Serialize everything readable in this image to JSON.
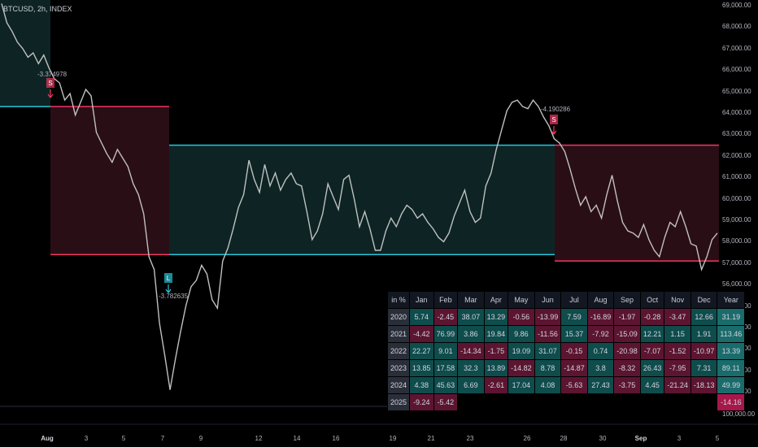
{
  "symbol": "BTCUSD, 2h, INDEX",
  "y_axis": {
    "ticks": [
      "69,000.00",
      "68,000.00",
      "67,000.00",
      "66,000.00",
      "65,000.00",
      "64,000.00",
      "63,000.00",
      "62,000.00",
      "61,000.00",
      "60,000.00",
      "59,000.00",
      "58,000.00",
      "57,000.00",
      "56,000.00",
      "55,000.00",
      "54,000.00",
      "53,000.00",
      "52,000.00",
      "51,000.00"
    ],
    "volume_label": "100,000.00"
  },
  "x_axis": {
    "ticks": [
      "Aug",
      "3",
      "5",
      "7",
      "9",
      "12",
      "14",
      "16",
      "19",
      "21",
      "23",
      "26",
      "28",
      "30",
      "Sep",
      "3",
      "5"
    ],
    "bold": [
      "Aug",
      "Sep"
    ]
  },
  "annotations": [
    {
      "text": "-3.374978",
      "signal": "S"
    },
    {
      "text": "-3.782635",
      "signal": "L"
    },
    {
      "text": "-4.190286",
      "signal": "S"
    }
  ],
  "zones": [
    {
      "type": "long",
      "top": 69300,
      "bottom": 64300
    },
    {
      "type": "short",
      "top": 64300,
      "bottom": 57400
    },
    {
      "type": "long",
      "top": 62500,
      "bottom": 57400
    },
    {
      "type": "short",
      "top": 62500,
      "bottom": 57100
    }
  ],
  "chart_data": {
    "type": "line",
    "ylim": [
      50500,
      69500
    ],
    "close_prices": [
      69100,
      68200,
      67800,
      67300,
      67000,
      66600,
      66800,
      66300,
      66700,
      66100,
      65600,
      65400,
      64600,
      64900,
      63900,
      64500,
      65100,
      64800,
      63100,
      62600,
      62100,
      61700,
      62300,
      61900,
      61500,
      60700,
      60200,
      59300,
      57300,
      56700,
      54200,
      52700,
      51100,
      52500,
      53800,
      55000,
      55900,
      56200,
      56900,
      56500,
      55300,
      54900,
      57100,
      57700,
      58600,
      59600,
      60200,
      61800,
      60900,
      60300,
      61600,
      60600,
      61200,
      60400,
      60900,
      61200,
      60700,
      60600,
      59400,
      58100,
      58500,
      59300,
      60700,
      60100,
      59500,
      60900,
      61100,
      60000,
      58700,
      59400,
      58600,
      57600,
      57600,
      58500,
      59100,
      58700,
      59300,
      59700,
      59500,
      59100,
      59300,
      58900,
      58600,
      58200,
      58000,
      58400,
      59200,
      59800,
      60400,
      59400,
      58900,
      59100,
      60600,
      61200,
      62300,
      63200,
      64100,
      64500,
      64600,
      64300,
      64200,
      64600,
      64300,
      63800,
      63400,
      62800,
      62600,
      62200,
      61400,
      60500,
      59700,
      60100,
      59400,
      59700,
      59100,
      60200,
      61100,
      59900,
      58900,
      58500,
      58400,
      58200,
      58800,
      58100,
      57600,
      57300,
      58200,
      58900,
      58700,
      59400,
      58700,
      57900,
      57800,
      56700,
      57300,
      58100,
      58400
    ],
    "monthly_returns": {
      "columns": [
        "in %",
        "Jan",
        "Feb",
        "Mar",
        "Apr",
        "May",
        "Jun",
        "Jul",
        "Aug",
        "Sep",
        "Oct",
        "Nov",
        "Dec",
        "Year"
      ],
      "rows": [
        {
          "year": "2020",
          "values": [
            "5.74",
            "-2.45",
            "38.07",
            "13.29",
            "-0.56",
            "-13.99",
            "7.59",
            "-16.89",
            "-1.97",
            "-0.28",
            "-3.47",
            "12.66",
            "31.19"
          ]
        },
        {
          "year": "2021",
          "values": [
            "-4.42",
            "76.99",
            "3.86",
            "19.84",
            "9.86",
            "-11.56",
            "15.37",
            "-7.92",
            "-15.09",
            "12.21",
            "1.15",
            "1.91",
            "113.46"
          ]
        },
        {
          "year": "2022",
          "values": [
            "22.27",
            "9.01",
            "-14.34",
            "-1.75",
            "19.09",
            "31.07",
            "-0.15",
            "0.74",
            "-20.98",
            "-7.07",
            "-1.52",
            "-10.97",
            "13.39"
          ]
        },
        {
          "year": "2023",
          "values": [
            "13.85",
            "17.58",
            "32.3",
            "13.89",
            "-14.82",
            "8.78",
            "-14.87",
            "3.8",
            "-8.32",
            "26.43",
            "-7.95",
            "7.31",
            "89.11"
          ]
        },
        {
          "year": "2024",
          "values": [
            "4.38",
            "45.63",
            "6.69",
            "-2.61",
            "17.04",
            "4.08",
            "-5.63",
            "27.43",
            "-3.75",
            "4.45",
            "-21.24",
            "-18.13",
            "49.99"
          ]
        },
        {
          "year": "2025",
          "values": [
            "-9.24",
            "-5.42",
            "",
            "",
            "",
            "",
            "",
            "",
            "",
            "",
            "",
            "",
            "-14.16"
          ]
        }
      ]
    }
  },
  "colors": {
    "long_zone_fill": "#0e2424",
    "long_zone_line": "#26c6da",
    "short_zone_fill": "#2a0e16",
    "short_zone_line": "#f23661",
    "price_line": "#c0c0c0"
  }
}
